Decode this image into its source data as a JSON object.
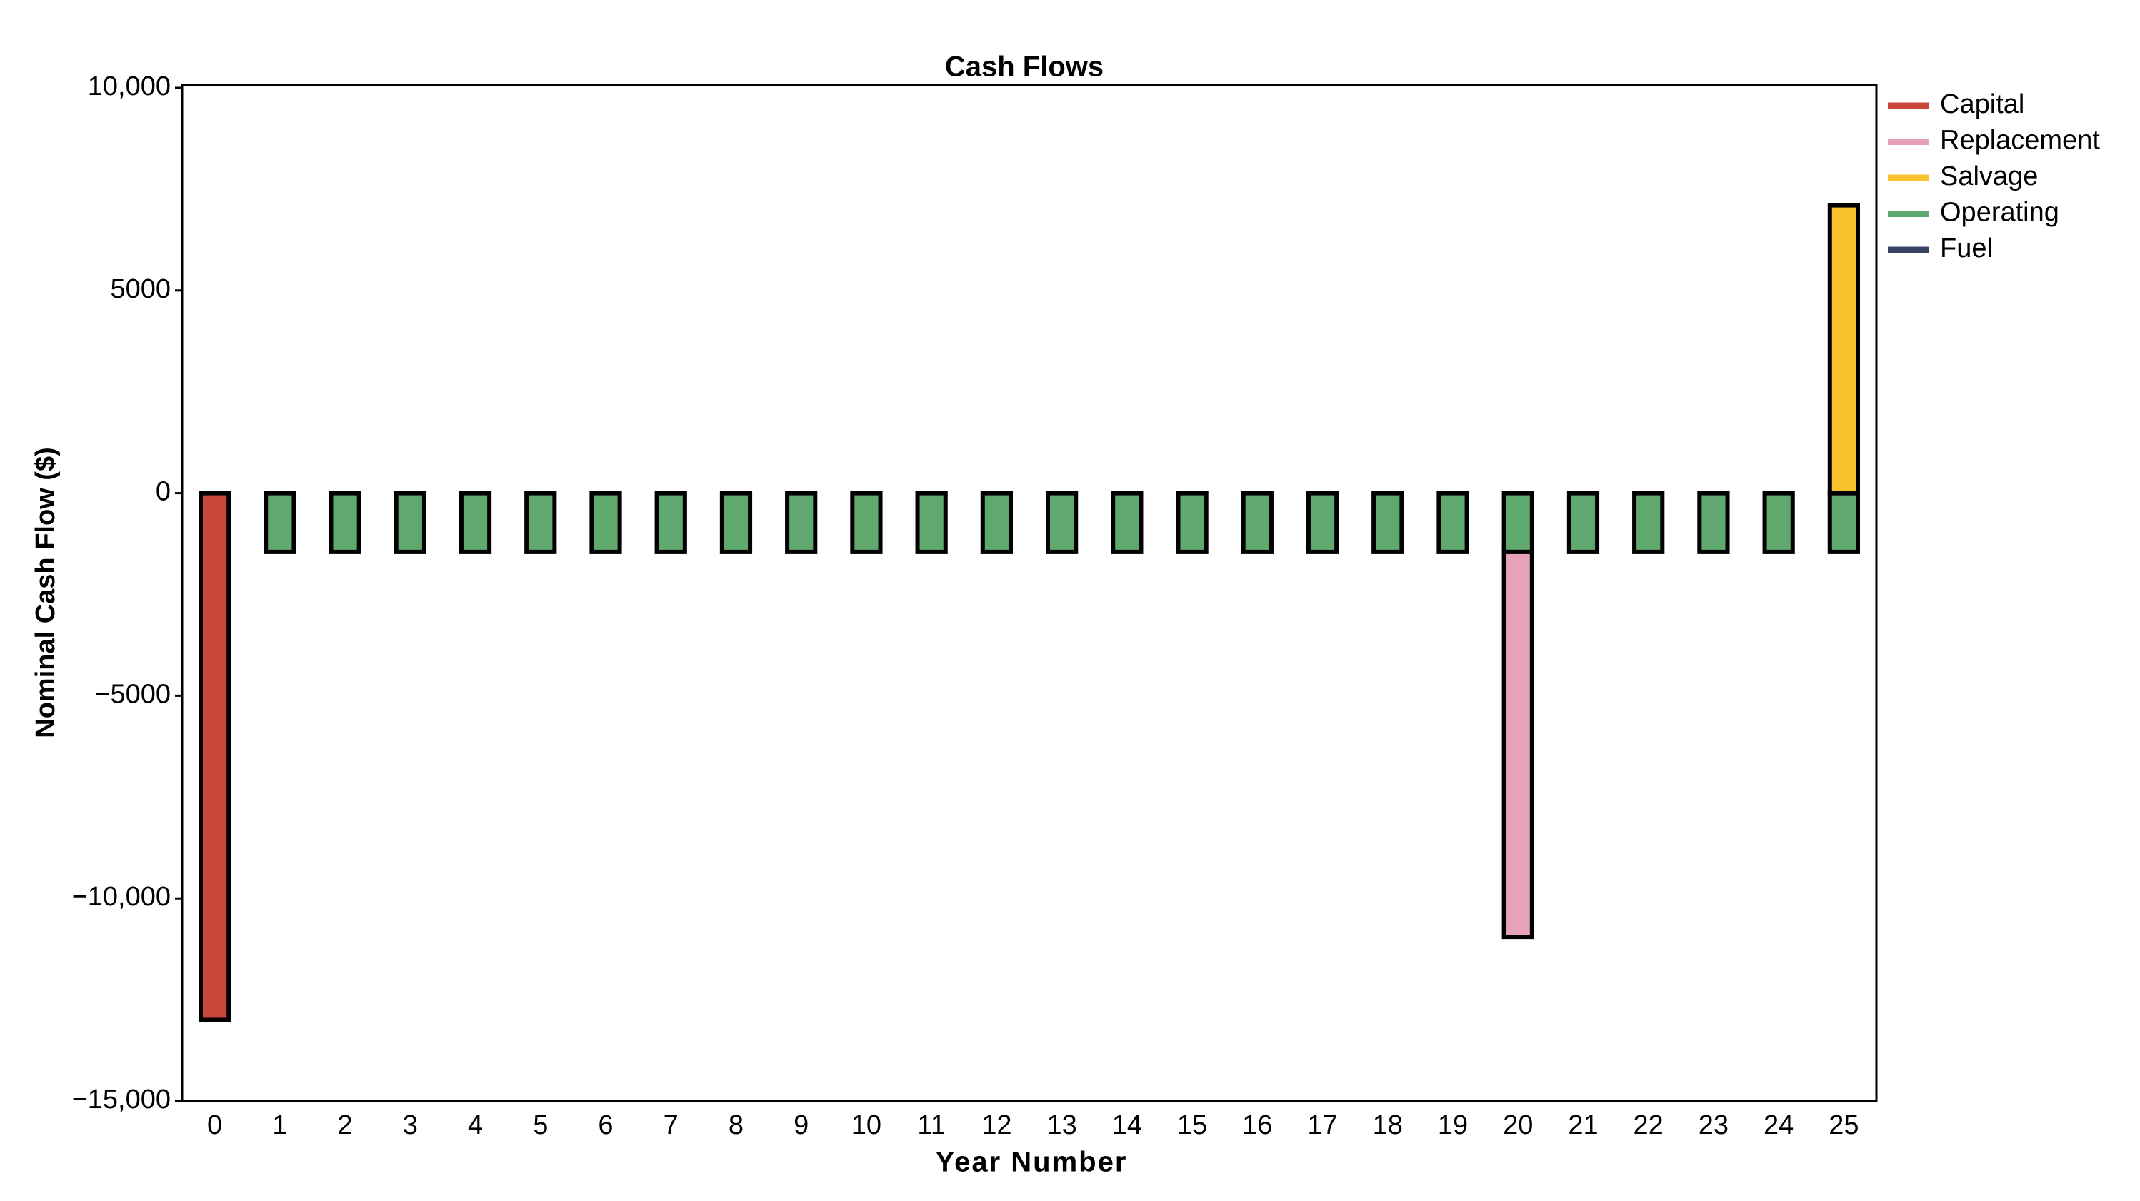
{
  "chart_data": {
    "type": "bar",
    "stacked": true,
    "title": "Cash Flows",
    "x_label": "Year Number",
    "y_label": "Nominal Cash Flow ($)",
    "categories": [
      "0",
      "1",
      "2",
      "3",
      "4",
      "5",
      "6",
      "7",
      "8",
      "9",
      "10",
      "11",
      "12",
      "13",
      "14",
      "15",
      "16",
      "17",
      "18",
      "19",
      "20",
      "21",
      "22",
      "23",
      "24",
      "25"
    ],
    "series": [
      {
        "name": "Capital",
        "color": "#c8453a",
        "values": [
          -13000,
          0,
          0,
          0,
          0,
          0,
          0,
          0,
          0,
          0,
          0,
          0,
          0,
          0,
          0,
          0,
          0,
          0,
          0,
          0,
          0,
          0,
          0,
          0,
          0,
          0
        ]
      },
      {
        "name": "Replacement",
        "color": "#e6a3b8",
        "values": [
          0,
          0,
          0,
          0,
          0,
          0,
          0,
          0,
          0,
          0,
          0,
          0,
          0,
          0,
          0,
          0,
          0,
          0,
          0,
          0,
          -9500,
          0,
          0,
          0,
          0,
          0
        ]
      },
      {
        "name": "Salvage",
        "color": "#f9c22e",
        "values": [
          0,
          0,
          0,
          0,
          0,
          0,
          0,
          0,
          0,
          0,
          0,
          0,
          0,
          0,
          0,
          0,
          0,
          0,
          0,
          0,
          0,
          0,
          0,
          0,
          0,
          7100
        ]
      },
      {
        "name": "Operating",
        "color": "#5fa86e",
        "values": [
          0,
          -1450,
          -1450,
          -1450,
          -1450,
          -1450,
          -1450,
          -1450,
          -1450,
          -1450,
          -1450,
          -1450,
          -1450,
          -1450,
          -1450,
          -1450,
          -1450,
          -1450,
          -1450,
          -1450,
          -1450,
          -1450,
          -1450,
          -1450,
          -1450,
          -1450
        ]
      },
      {
        "name": "Fuel",
        "color": "#3a4566",
        "values": [
          0,
          0,
          0,
          0,
          0,
          0,
          0,
          0,
          0,
          0,
          0,
          0,
          0,
          0,
          0,
          0,
          0,
          0,
          0,
          0,
          0,
          0,
          0,
          0,
          0,
          0
        ]
      }
    ],
    "ylim": [
      -15000,
      10000
    ],
    "yticks": [
      {
        "value": 10000,
        "label": "10,000"
      },
      5000,
      0,
      {
        "value": -5000,
        "label": "−5000"
      },
      {
        "value": -10000,
        "label": "−10,000"
      },
      {
        "value": -15000,
        "label": "−15,000"
      }
    ],
    "legend": "right"
  }
}
